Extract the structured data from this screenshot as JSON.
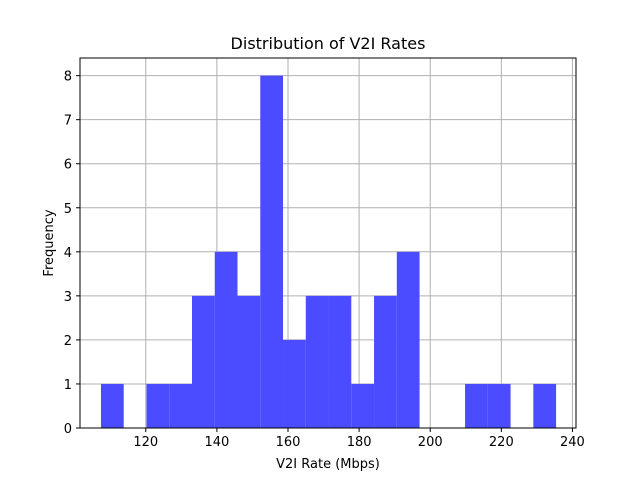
{
  "chart_data": {
    "type": "bar",
    "title": "Distribution of V2I Rates",
    "xlabel": "V2I Rate (Mbps)",
    "ylabel": "Frequency",
    "xlim": [
      101.5,
      241
    ],
    "ylim": [
      0,
      8.4
    ],
    "xticks": [
      120,
      140,
      160,
      180,
      200,
      220,
      240
    ],
    "yticks": [
      0,
      1,
      2,
      3,
      4,
      5,
      6,
      7,
      8
    ],
    "grid": true,
    "bar_color": "#4b4bff",
    "bins": [
      {
        "x0": 107.4,
        "x1": 113.8,
        "value": 1
      },
      {
        "x0": 113.8,
        "x1": 120.2,
        "value": 0
      },
      {
        "x0": 120.2,
        "x1": 126.6,
        "value": 1
      },
      {
        "x0": 126.6,
        "x1": 133.0,
        "value": 1
      },
      {
        "x0": 133.0,
        "x1": 139.4,
        "value": 3
      },
      {
        "x0": 139.4,
        "x1": 145.8,
        "value": 4
      },
      {
        "x0": 145.8,
        "x1": 152.2,
        "value": 3
      },
      {
        "x0": 152.2,
        "x1": 158.6,
        "value": 8
      },
      {
        "x0": 158.6,
        "x1": 165.0,
        "value": 2
      },
      {
        "x0": 165.0,
        "x1": 171.4,
        "value": 3
      },
      {
        "x0": 171.4,
        "x1": 177.8,
        "value": 3
      },
      {
        "x0": 177.8,
        "x1": 184.2,
        "value": 1
      },
      {
        "x0": 184.2,
        "x1": 190.6,
        "value": 3
      },
      {
        "x0": 190.6,
        "x1": 197.0,
        "value": 4
      },
      {
        "x0": 197.0,
        "x1": 203.4,
        "value": 0
      },
      {
        "x0": 203.4,
        "x1": 209.8,
        "value": 0
      },
      {
        "x0": 209.8,
        "x1": 216.2,
        "value": 1
      },
      {
        "x0": 216.2,
        "x1": 222.6,
        "value": 1
      },
      {
        "x0": 222.6,
        "x1": 229.0,
        "value": 0
      },
      {
        "x0": 229.0,
        "x1": 235.4,
        "value": 1
      }
    ]
  }
}
